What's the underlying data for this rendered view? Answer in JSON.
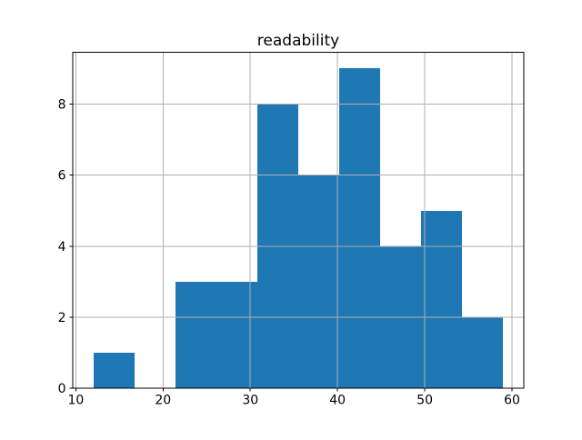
{
  "chart_data": {
    "type": "bar",
    "subtype": "histogram",
    "title": "readability",
    "xlabel": "",
    "ylabel": "",
    "bin_edges": [
      12.0,
      16.7,
      21.4,
      26.1,
      30.8,
      35.5,
      40.2,
      44.9,
      49.6,
      54.3,
      59.0
    ],
    "counts": [
      1,
      0,
      3,
      3,
      8,
      6,
      9,
      4,
      5,
      2
    ],
    "xlim": [
      9.65,
      61.35
    ],
    "ylim": [
      0,
      9.45
    ],
    "x_ticks": [
      10,
      20,
      30,
      40,
      50,
      60
    ],
    "y_ticks": [
      0,
      2,
      4,
      6,
      8
    ],
    "grid": true,
    "grid_on_top_of_bars": true,
    "legend": null,
    "colors": {
      "bar": "#1f77b4",
      "grid": "#b0b0b0",
      "axis": "#000000",
      "background": "#ffffff"
    }
  }
}
